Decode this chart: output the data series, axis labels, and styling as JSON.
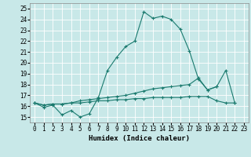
{
  "xlabel": "Humidex (Indice chaleur)",
  "xlim": [
    -0.5,
    23.5
  ],
  "ylim": [
    14.5,
    25.5
  ],
  "yticks": [
    15,
    16,
    17,
    18,
    19,
    20,
    21,
    22,
    23,
    24,
    25
  ],
  "xticks": [
    0,
    1,
    2,
    3,
    4,
    5,
    6,
    7,
    8,
    9,
    10,
    11,
    12,
    13,
    14,
    15,
    16,
    17,
    18,
    19,
    20,
    21,
    22,
    23
  ],
  "bg_color": "#c8e8e8",
  "grid_color": "#ffffff",
  "line_color": "#1a7a6e",
  "line1_y": [
    16.3,
    15.9,
    16.1,
    15.2,
    15.6,
    15.0,
    15.3,
    16.8,
    19.3,
    20.5,
    21.5,
    22.0,
    24.7,
    24.1,
    24.3,
    24.0,
    23.1,
    21.1,
    18.5,
    17.5,
    17.8,
    19.3,
    16.3,
    null
  ],
  "line2_y": [
    16.3,
    16.1,
    16.2,
    16.2,
    16.3,
    16.5,
    16.6,
    16.7,
    16.8,
    16.9,
    17.0,
    17.2,
    17.4,
    17.6,
    17.7,
    17.8,
    17.9,
    18.0,
    18.6,
    17.5,
    17.8,
    null,
    null,
    null
  ],
  "line3_y": [
    16.3,
    16.1,
    16.2,
    16.2,
    16.3,
    16.3,
    16.4,
    16.5,
    16.5,
    16.6,
    16.6,
    16.7,
    16.7,
    16.8,
    16.8,
    16.8,
    16.8,
    16.9,
    16.9,
    16.9,
    16.5,
    16.3,
    16.3,
    null
  ]
}
